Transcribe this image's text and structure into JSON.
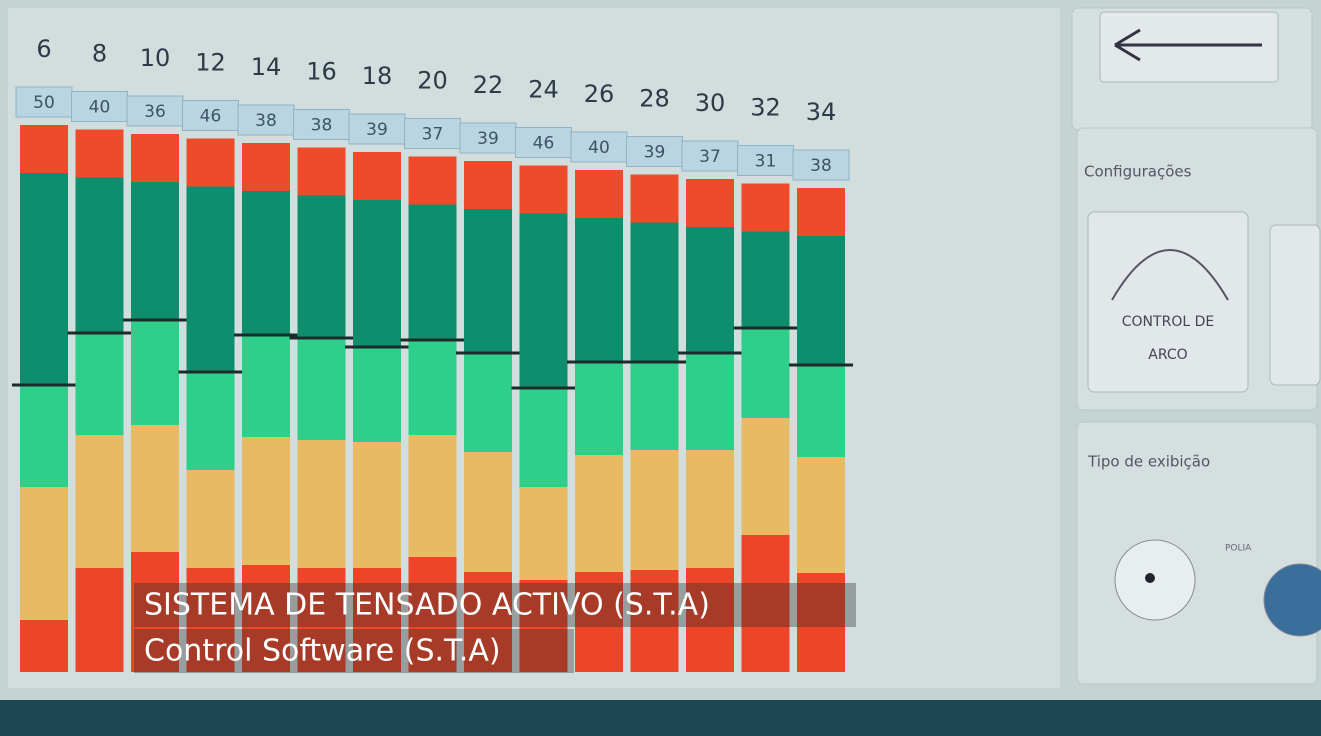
{
  "channels": {
    "numbers": [
      6,
      8,
      10,
      12,
      14,
      16,
      18,
      20,
      22,
      24,
      26,
      28,
      30,
      32,
      34
    ],
    "readings": [
      50,
      40,
      36,
      46,
      38,
      38,
      39,
      37,
      39,
      46,
      40,
      39,
      37,
      31,
      38
    ]
  },
  "panels": {
    "config_title": "Configurações",
    "button_line1": "CONTROL DE",
    "button_line2": "ARCO",
    "display_title": "Tipo de exibição",
    "display_option": "POLIA"
  },
  "caption": {
    "line1": "SISTEMA DE TENSADO ACTIVO (S.T.A)",
    "line2": "Control Software (S.T.A)"
  }
}
